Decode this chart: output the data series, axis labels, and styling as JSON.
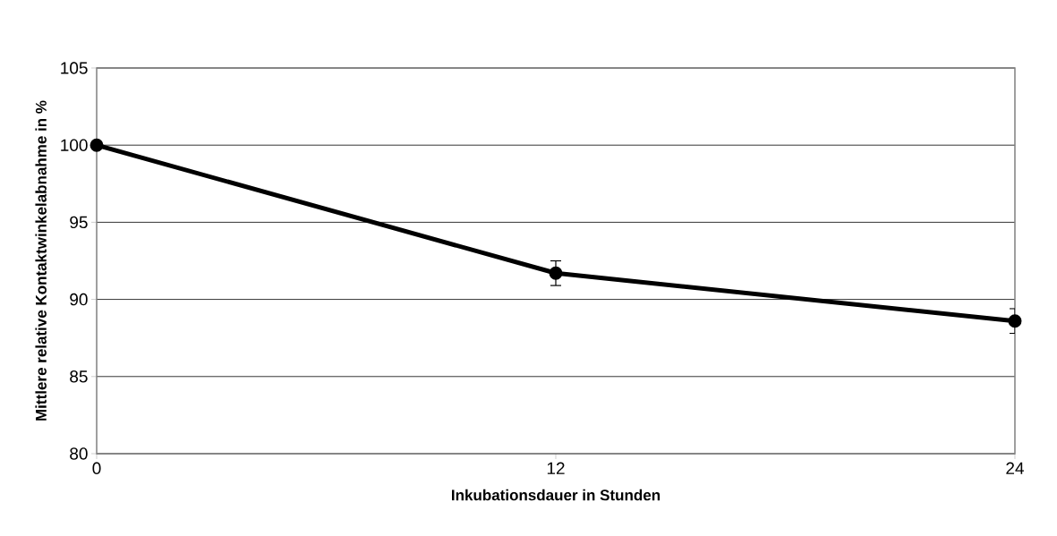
{
  "chart_data": {
    "type": "line",
    "xlabel": "Inkubationsdauer in Stunden",
    "ylabel": "Mittlere relative Kontaktwinkelabnahme in %",
    "x": [
      0,
      12,
      24
    ],
    "series": [
      {
        "color": "#000000",
        "values": [
          100,
          91.7,
          88.6
        ],
        "errors": [
          null,
          0.8,
          0.8
        ]
      }
    ],
    "xlim": [
      0,
      24
    ],
    "xticks": [
      0,
      12,
      24
    ],
    "ylim": [
      80,
      105
    ],
    "yticks": [
      80,
      85,
      90,
      95,
      100,
      105
    ],
    "grid": "y",
    "marker": "circle",
    "line_style": "solid"
  }
}
